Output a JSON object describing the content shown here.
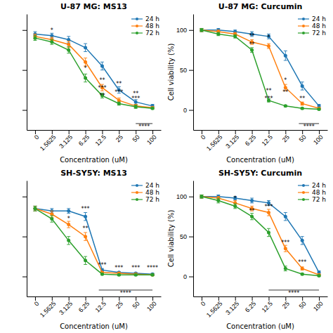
{
  "chart_data": [
    {
      "type": "line",
      "title": "U-87 MG: MS13",
      "x_label": "Concentration (uM)",
      "categories": [
        "0",
        "1.5625",
        "3.125",
        "6.25",
        "12.5",
        "25",
        "50",
        "100"
      ],
      "series": [
        {
          "name": "24 h",
          "values": [
            95,
            93,
            88,
            78,
            55,
            25,
            10,
            5
          ],
          "errors": [
            3,
            3,
            4,
            5,
            5,
            4,
            3,
            2
          ]
        },
        {
          "name": "48 h",
          "values": [
            92,
            88,
            82,
            60,
            28,
            12,
            5,
            3
          ],
          "errors": [
            3,
            3,
            4,
            5,
            4,
            3,
            2,
            1
          ]
        },
        {
          "name": "72 h",
          "values": [
            90,
            85,
            75,
            40,
            18,
            8,
            4,
            2
          ],
          "errors": [
            3,
            3,
            4,
            5,
            3,
            2,
            2,
            1
          ]
        }
      ],
      "ylim": [
        -25,
        120
      ],
      "yticks": [
        0,
        50,
        100
      ],
      "grid": false,
      "legend": "upper right",
      "tick_labels": "x",
      "marker": "circle",
      "line_style": "solid",
      "annotations": [
        {
          "x": 1,
          "y": 97,
          "text": "*"
        },
        {
          "x": 3,
          "y": 50,
          "text": "*"
        },
        {
          "x": 4,
          "y": 35,
          "text": "**"
        },
        {
          "x": 4,
          "y": 25,
          "text": "***"
        },
        {
          "x": 4,
          "y": 15,
          "text": "**"
        },
        {
          "x": 5,
          "y": 30,
          "text": "**"
        },
        {
          "x": 5,
          "y": 20,
          "text": "***"
        },
        {
          "x": 6,
          "y": 18,
          "text": "**"
        },
        {
          "x": 6,
          "y": 12,
          "text": "***"
        }
      ],
      "bracket": {
        "x1": 6.0,
        "x2": 7.0,
        "y": -17,
        "text": "****"
      }
    },
    {
      "type": "line",
      "title": "U-87 MG: Curcumin",
      "x_label": "Concentration (uM)",
      "y_label": "Cell viability (%)",
      "categories": [
        "0",
        "1.5625",
        "3.125",
        "6.25",
        "12.5",
        "25",
        "50",
        "100"
      ],
      "series": [
        {
          "name": "24 h",
          "values": [
            100,
            100,
            98,
            95,
            92,
            68,
            30,
            5
          ],
          "errors": [
            2,
            2,
            2,
            3,
            3,
            6,
            5,
            2
          ]
        },
        {
          "name": "48 h",
          "values": [
            100,
            98,
            95,
            85,
            80,
            28,
            8,
            2
          ],
          "errors": [
            2,
            2,
            2,
            3,
            3,
            4,
            2,
            1
          ]
        },
        {
          "name": "72 h",
          "values": [
            100,
            95,
            92,
            75,
            12,
            5,
            2,
            1
          ],
          "errors": [
            2,
            2,
            2,
            3,
            2,
            1,
            1,
            1
          ]
        }
      ],
      "ylim": [
        -25,
        120
      ],
      "yticks": [
        0,
        50,
        100
      ],
      "grid": false,
      "legend": "upper right",
      "marker": "circle",
      "line_style": "solid",
      "annotations": [
        {
          "x": 3,
          "y": 90,
          "text": "**"
        },
        {
          "x": 3,
          "y": 80,
          "text": "**"
        },
        {
          "x": 4,
          "y": 88,
          "text": "*"
        },
        {
          "x": 4,
          "y": 22,
          "text": "**"
        },
        {
          "x": 4,
          "y": 12,
          "text": "***"
        },
        {
          "x": 5,
          "y": 35,
          "text": "*"
        },
        {
          "x": 5,
          "y": 20,
          "text": "**"
        },
        {
          "x": 6,
          "y": 12,
          "text": "**"
        }
      ],
      "bracket": {
        "x1": 5.8,
        "x2": 7.0,
        "y": -17,
        "text": "****"
      }
    },
    {
      "type": "line",
      "title": "SH-SY5Y: MS13",
      "x_label": "Concentration (uM)",
      "categories": [
        "0",
        "1.5625",
        "3.125",
        "6.25",
        "12.5",
        "25",
        "50",
        "100"
      ],
      "series": [
        {
          "name": "24 h",
          "values": [
            85,
            82,
            82,
            75,
            8,
            5,
            4,
            3
          ],
          "errors": [
            3,
            3,
            3,
            5,
            2,
            1,
            1,
            1
          ]
        },
        {
          "name": "48 h",
          "values": [
            85,
            78,
            65,
            50,
            5,
            4,
            3,
            2
          ],
          "errors": [
            3,
            4,
            4,
            5,
            1,
            1,
            1,
            1
          ]
        },
        {
          "name": "72 h",
          "values": [
            85,
            72,
            45,
            20,
            3,
            2,
            2,
            2
          ],
          "errors": [
            3,
            4,
            5,
            5,
            1,
            1,
            1,
            1
          ]
        }
      ],
      "ylim": [
        -25,
        120
      ],
      "yticks": [
        0,
        50,
        100
      ],
      "grid": false,
      "legend": "upper right",
      "tick_labels": "x",
      "marker": "circle",
      "line_style": "solid",
      "annotations": [
        {
          "x": 2,
          "y": 70,
          "text": "*"
        },
        {
          "x": 3,
          "y": 82,
          "text": "***"
        },
        {
          "x": 3,
          "y": 58,
          "text": "**"
        },
        {
          "x": 4,
          "y": 12,
          "text": "***"
        },
        {
          "x": 5,
          "y": 8,
          "text": "***"
        },
        {
          "x": 6,
          "y": 8,
          "text": "***"
        },
        {
          "x": 7,
          "y": 8,
          "text": "****"
        }
      ],
      "bracket": {
        "x1": 3.8,
        "x2": 7.0,
        "y": -17,
        "text": "****"
      }
    },
    {
      "type": "line",
      "title": "SH-SY5Y: Curcumin",
      "x_label": "Concentration (uM)",
      "y_label": "Cell viability (%)",
      "categories": [
        "0",
        "1.5625",
        "3.125",
        "6.25",
        "12.5",
        "25",
        "50",
        "100"
      ],
      "series": [
        {
          "name": "24 h",
          "values": [
            100,
            100,
            98,
            95,
            92,
            75,
            45,
            5
          ],
          "errors": [
            2,
            2,
            2,
            3,
            3,
            5,
            5,
            2
          ]
        },
        {
          "name": "48 h",
          "values": [
            100,
            98,
            92,
            85,
            80,
            35,
            10,
            2
          ],
          "errors": [
            2,
            2,
            3,
            3,
            4,
            4,
            2,
            1
          ]
        },
        {
          "name": "72 h",
          "values": [
            100,
            95,
            88,
            75,
            55,
            10,
            3,
            1
          ],
          "errors": [
            2,
            3,
            3,
            4,
            5,
            3,
            1,
            1
          ]
        }
      ],
      "ylim": [
        -25,
        120
      ],
      "yticks": [
        0,
        50,
        100
      ],
      "grid": false,
      "legend": "upper right",
      "marker": "circle",
      "line_style": "solid",
      "annotations": [
        {
          "x": 2,
          "y": 95,
          "text": "*"
        },
        {
          "x": 3,
          "y": 80,
          "text": "**"
        },
        {
          "x": 4,
          "y": 85,
          "text": "***"
        },
        {
          "x": 5,
          "y": 40,
          "text": "***"
        },
        {
          "x": 6,
          "y": 15,
          "text": "***"
        }
      ],
      "bracket": {
        "x1": 4.0,
        "x2": 7.0,
        "y": -17,
        "text": "****"
      }
    }
  ]
}
